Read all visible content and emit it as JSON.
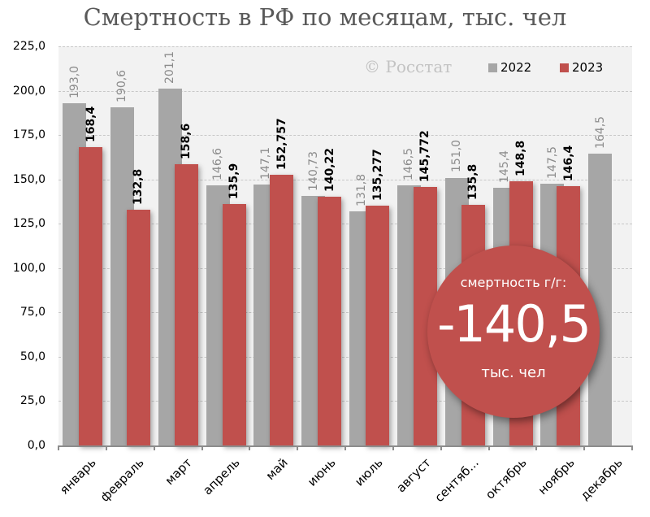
{
  "title": "Смертность в РФ по месяцам, тыс. чел",
  "watermark": "© Росстат",
  "legend": [
    {
      "label": "2022",
      "color": "#a6a6a6"
    },
    {
      "label": "2023",
      "color": "#c0504d"
    }
  ],
  "y_axis": {
    "ticks": [
      "0,0",
      "25,0",
      "50,0",
      "75,0",
      "100,0",
      "125,0",
      "150,0",
      "175,0",
      "200,0",
      "225,0"
    ]
  },
  "badge": {
    "top_text": "смертность г/г:",
    "value": "-140,5",
    "bottom_text": "тыс. чел"
  },
  "chart_data": {
    "type": "bar",
    "title": "Смертность в РФ по месяцам, тыс. чел",
    "xlabel": "",
    "ylabel": "",
    "ylim": [
      0,
      225
    ],
    "grid": true,
    "legend_position": "top-right",
    "categories": [
      "январь",
      "февраль",
      "март",
      "апрель",
      "май",
      "июнь",
      "июль",
      "август",
      "сентяб...",
      "октябрь",
      "ноябрь",
      "декабрь"
    ],
    "series": [
      {
        "name": "2022",
        "color": "#a6a6a6",
        "values": [
          193.0,
          190.6,
          201.1,
          146.6,
          147.1,
          140.73,
          131.8,
          146.5,
          151.0,
          145.4,
          147.5,
          164.5
        ],
        "labels": [
          "193,0",
          "190,6",
          "201,1",
          "146,6",
          "147,1",
          "140,73",
          "131,8",
          "146,5",
          "151,0",
          "145,4",
          "147,5",
          "164,5"
        ]
      },
      {
        "name": "2023",
        "color": "#c0504d",
        "values": [
          168.4,
          132.8,
          158.6,
          135.9,
          152.757,
          140.22,
          135.277,
          145.772,
          135.8,
          148.8,
          146.4,
          null
        ],
        "labels": [
          "168,4",
          "132,8",
          "158,6",
          "135,9",
          "152,757",
          "140,22",
          "135,277",
          "145,772",
          "135,8",
          "148,8",
          "146,4",
          null
        ]
      }
    ],
    "annotations": [
      "© Росстат",
      "смертность г/г: -140,5 тыс. чел"
    ]
  }
}
